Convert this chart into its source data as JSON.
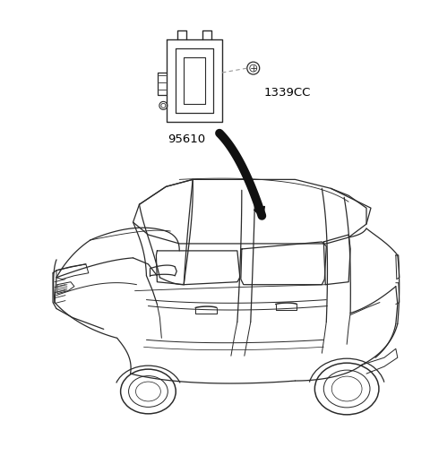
{
  "bg_color": "#ffffff",
  "line_color": "#2a2a2a",
  "label_95610": "95610",
  "label_1339CC": "1339CC",
  "label_fontsize": 9.5,
  "arrow_color": "#111111",
  "dashed_line_color": "#999999",
  "lw_car": 0.9,
  "lw_sensor": 1.0,
  "figw": 4.8,
  "figh": 5.28,
  "dpi": 100
}
